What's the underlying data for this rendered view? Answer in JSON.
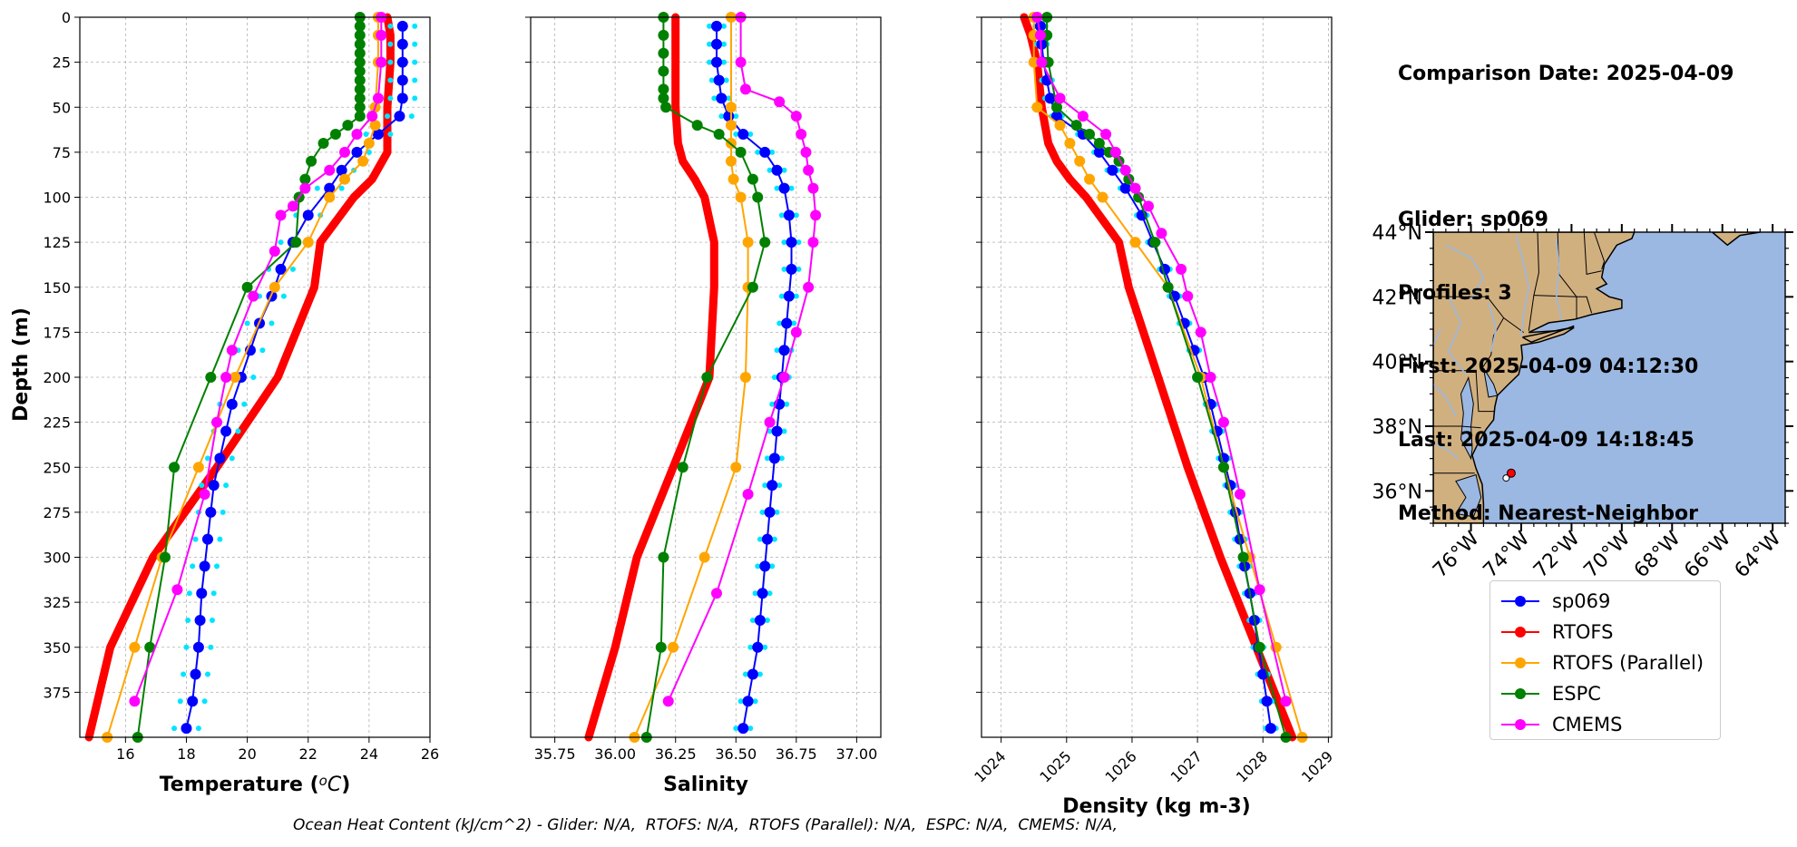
{
  "info": {
    "comparison_date": "Comparison Date: 2025-04-09",
    "glider": "Glider: sp069",
    "profiles": "Profiles: 3",
    "first": "First: 2025-04-09 04:12:30",
    "last": "Last: 2025-04-09 14:18:45",
    "method": "Method: Nearest-Neighbor"
  },
  "footer": "Ocean Heat Content (kJ/cm^2) - Glider: N/A,  RTOFS: N/A,  RTOFS (Parallel): N/A,  ESPC: N/A,  CMEMS: N/A,",
  "legend": [
    {
      "label": "sp069",
      "color": "#0000ff"
    },
    {
      "label": "RTOFS",
      "color": "#ff0000"
    },
    {
      "label": "RTOFS (Parallel)",
      "color": "#ffa500"
    },
    {
      "label": "ESPC",
      "color": "#008000"
    },
    {
      "label": "CMEMS",
      "color": "#ff00ff"
    }
  ],
  "map": {
    "lat_ticks": [
      "44°N",
      "42°N",
      "40°N",
      "38°N",
      "36°N"
    ],
    "lon_ticks": [
      "76°W",
      "74°W",
      "72°W",
      "70°W",
      "68°W",
      "66°W",
      "64°W"
    ],
    "ocean_color": "#9bb8e2",
    "land_color": "#d1b080",
    "markers": [
      {
        "lon": -74.4,
        "lat": 36.55,
        "color": "#ff0000"
      },
      {
        "lon": -74.6,
        "lat": 36.4,
        "color": "#ffffff"
      }
    ]
  },
  "chart_data": [
    {
      "type": "line",
      "xlabel": "Temperature (°C)",
      "ylabel": "Depth (m)",
      "xlim": [
        14.5,
        26
      ],
      "ylim": [
        400,
        0
      ],
      "xticks": [
        "16",
        "18",
        "20",
        "22",
        "24",
        "26"
      ],
      "yticks": [
        "0",
        "25",
        "50",
        "75",
        "100",
        "125",
        "150",
        "175",
        "200",
        "225",
        "250",
        "275",
        "300",
        "325",
        "350",
        "375"
      ],
      "grid": true,
      "series": [
        {
          "name": "sp069",
          "cyan_spread": 0.4,
          "depths": [
            5,
            15,
            25,
            35,
            45,
            55,
            65,
            75,
            85,
            95,
            110,
            125,
            140,
            155,
            170,
            185,
            200,
            215,
            230,
            245,
            260,
            275,
            290,
            305,
            320,
            335,
            350,
            365,
            380,
            395
          ],
          "values": [
            25.1,
            25.1,
            25.1,
            25.1,
            25.1,
            25.0,
            24.3,
            23.6,
            23.1,
            22.7,
            22.0,
            21.5,
            21.1,
            20.8,
            20.4,
            20.1,
            19.8,
            19.5,
            19.3,
            19.1,
            18.9,
            18.8,
            18.7,
            18.6,
            18.5,
            18.45,
            18.4,
            18.3,
            18.2,
            18.0
          ]
        },
        {
          "name": "RTOFS",
          "depths": [
            0,
            10,
            25,
            50,
            75,
            90,
            100,
            125,
            150,
            200,
            250,
            300,
            350,
            400
          ],
          "values": [
            24.6,
            24.7,
            24.7,
            24.6,
            24.6,
            24.1,
            23.5,
            22.4,
            22.2,
            21.0,
            19.0,
            16.9,
            15.5,
            14.8
          ]
        },
        {
          "name": "RTOFS (Parallel)",
          "depths": [
            0,
            10,
            25,
            50,
            60,
            70,
            80,
            90,
            100,
            125,
            150,
            200,
            250,
            300,
            350,
            400
          ],
          "values": [
            24.3,
            24.3,
            24.3,
            24.2,
            24.2,
            24.0,
            23.8,
            23.2,
            22.7,
            22.0,
            20.9,
            19.6,
            18.4,
            17.2,
            16.3,
            15.4
          ]
        },
        {
          "name": "ESPC",
          "depths": [
            0,
            5,
            10,
            15,
            20,
            25,
            30,
            35,
            40,
            45,
            50,
            55,
            60,
            65,
            70,
            80,
            90,
            100,
            125,
            150,
            200,
            250,
            300,
            350,
            400
          ],
          "values": [
            23.7,
            23.7,
            23.7,
            23.7,
            23.7,
            23.7,
            23.7,
            23.7,
            23.7,
            23.7,
            23.7,
            23.7,
            23.3,
            22.9,
            22.5,
            22.1,
            21.9,
            21.7,
            21.6,
            20.0,
            18.8,
            17.6,
            17.3,
            16.8,
            16.4
          ]
        },
        {
          "name": "CMEMS",
          "depths": [
            0,
            10,
            25,
            45,
            55,
            65,
            75,
            85,
            95,
            105,
            110,
            130,
            155,
            185,
            200,
            225,
            265,
            318,
            380
          ],
          "values": [
            24.4,
            24.4,
            24.4,
            24.3,
            24.1,
            23.6,
            23.2,
            22.7,
            21.9,
            21.5,
            21.1,
            20.9,
            20.2,
            19.5,
            19.3,
            19.0,
            18.6,
            17.7,
            16.3
          ]
        }
      ]
    },
    {
      "type": "line",
      "xlabel": "Salinity",
      "xlim": [
        35.65,
        37.1
      ],
      "ylim": [
        400,
        0
      ],
      "xticks": [
        "35.75",
        "36.00",
        "36.25",
        "36.50",
        "36.75",
        "37.00"
      ],
      "grid": true,
      "series": [
        {
          "name": "sp069",
          "cyan_spread": 0.03,
          "depths": [
            5,
            15,
            25,
            35,
            45,
            55,
            65,
            75,
            85,
            95,
            110,
            125,
            140,
            155,
            170,
            185,
            200,
            215,
            230,
            245,
            260,
            275,
            290,
            305,
            320,
            335,
            350,
            365,
            380,
            395
          ],
          "values": [
            36.42,
            36.42,
            36.42,
            36.43,
            36.44,
            36.47,
            36.53,
            36.62,
            36.67,
            36.7,
            36.72,
            36.73,
            36.73,
            36.72,
            36.71,
            36.7,
            36.69,
            36.68,
            36.67,
            36.66,
            36.65,
            36.64,
            36.63,
            36.62,
            36.61,
            36.6,
            36.59,
            36.57,
            36.55,
            36.53
          ]
        },
        {
          "name": "RTOFS",
          "depths": [
            0,
            50,
            70,
            80,
            90,
            100,
            125,
            150,
            200,
            250,
            300,
            350,
            400
          ],
          "values": [
            36.25,
            36.25,
            36.26,
            36.28,
            36.33,
            36.37,
            36.41,
            36.41,
            36.39,
            36.24,
            36.09,
            36.0,
            35.89
          ]
        },
        {
          "name": "RTOFS (Parallel)",
          "depths": [
            0,
            50,
            60,
            70,
            80,
            90,
            100,
            125,
            150,
            200,
            250,
            300,
            350,
            400
          ],
          "values": [
            36.48,
            36.48,
            36.48,
            36.48,
            36.48,
            36.49,
            36.52,
            36.55,
            36.55,
            36.54,
            36.5,
            36.37,
            36.24,
            36.08
          ]
        },
        {
          "name": "ESPC",
          "depths": [
            0,
            10,
            20,
            30,
            40,
            45,
            50,
            60,
            65,
            75,
            90,
            100,
            125,
            150,
            200,
            250,
            300,
            350,
            400
          ],
          "values": [
            36.2,
            36.2,
            36.2,
            36.2,
            36.2,
            36.2,
            36.21,
            36.34,
            36.43,
            36.52,
            36.57,
            36.59,
            36.62,
            36.57,
            36.38,
            36.28,
            36.2,
            36.19,
            36.13
          ]
        },
        {
          "name": "CMEMS",
          "depths": [
            0,
            25,
            40,
            47,
            55,
            65,
            75,
            85,
            95,
            110,
            125,
            150,
            175,
            200,
            225,
            265,
            320,
            380
          ],
          "values": [
            36.52,
            36.52,
            36.54,
            36.68,
            36.75,
            36.77,
            36.79,
            36.8,
            36.82,
            36.83,
            36.82,
            36.8,
            36.75,
            36.7,
            36.64,
            36.55,
            36.42,
            36.22
          ]
        }
      ]
    },
    {
      "type": "line",
      "xlabel": "Density (kg m-3)",
      "xlim": [
        1023.7,
        1029.05
      ],
      "ylim": [
        400,
        0
      ],
      "xticks": [
        "1024",
        "1025",
        "1026",
        "1027",
        "1028",
        "1029"
      ],
      "grid": true,
      "series": [
        {
          "name": "sp069",
          "cyan_spread": 0.08,
          "depths": [
            5,
            15,
            25,
            35,
            45,
            55,
            65,
            75,
            85,
            95,
            110,
            125,
            140,
            155,
            170,
            185,
            200,
            215,
            230,
            245,
            260,
            275,
            290,
            305,
            320,
            335,
            350,
            365,
            380,
            395
          ],
          "values": [
            1024.6,
            1024.62,
            1024.65,
            1024.7,
            1024.75,
            1024.85,
            1025.25,
            1025.5,
            1025.7,
            1025.9,
            1026.15,
            1026.32,
            1026.5,
            1026.65,
            1026.8,
            1026.95,
            1027.1,
            1027.2,
            1027.3,
            1027.4,
            1027.5,
            1027.58,
            1027.65,
            1027.72,
            1027.8,
            1027.87,
            1027.93,
            1028.0,
            1028.06,
            1028.12
          ]
        },
        {
          "name": "RTOFS",
          "depths": [
            0,
            10,
            25,
            50,
            70,
            80,
            90,
            100,
            125,
            150,
            200,
            250,
            300,
            350,
            400
          ],
          "values": [
            1024.35,
            1024.45,
            1024.55,
            1024.62,
            1024.72,
            1024.85,
            1025.05,
            1025.3,
            1025.8,
            1025.95,
            1026.4,
            1026.85,
            1027.35,
            1027.9,
            1028.45
          ]
        },
        {
          "name": "RTOFS (Parallel)",
          "depths": [
            0,
            10,
            25,
            50,
            60,
            70,
            80,
            90,
            100,
            125,
            150,
            200,
            250,
            300,
            350,
            400
          ],
          "values": [
            1024.5,
            1024.5,
            1024.5,
            1024.55,
            1024.9,
            1025.05,
            1025.2,
            1025.35,
            1025.55,
            1026.05,
            1026.55,
            1027.05,
            1027.4,
            1027.8,
            1028.2,
            1028.6
          ]
        },
        {
          "name": "ESPC",
          "depths": [
            0,
            10,
            25,
            50,
            60,
            65,
            70,
            75,
            80,
            90,
            100,
            125,
            150,
            200,
            250,
            300,
            350,
            400
          ],
          "values": [
            1024.7,
            1024.7,
            1024.72,
            1024.85,
            1025.15,
            1025.35,
            1025.5,
            1025.65,
            1025.8,
            1025.95,
            1026.1,
            1026.35,
            1026.55,
            1027.0,
            1027.4,
            1027.7,
            1027.95,
            1028.35
          ]
        },
        {
          "name": "CMEMS",
          "depths": [
            0,
            10,
            25,
            45,
            55,
            65,
            75,
            85,
            95,
            105,
            120,
            140,
            155,
            175,
            200,
            225,
            265,
            318,
            380
          ],
          "values": [
            1024.55,
            1024.6,
            1024.62,
            1024.9,
            1025.25,
            1025.6,
            1025.75,
            1025.9,
            1026.05,
            1026.25,
            1026.45,
            1026.75,
            1026.85,
            1027.05,
            1027.2,
            1027.4,
            1027.65,
            1027.95,
            1028.35
          ]
        }
      ]
    }
  ]
}
